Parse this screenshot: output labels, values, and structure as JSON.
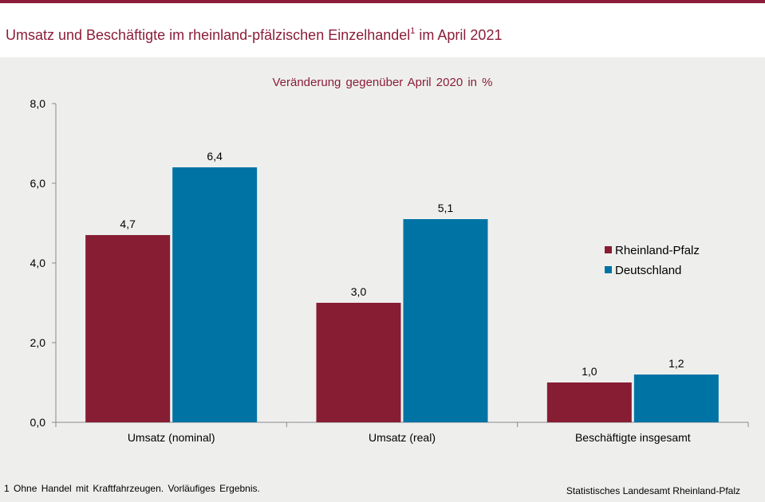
{
  "header": {
    "title_main": "Umsatz und Beschäftigte im rheinland-pfälzischen Einzelhandel",
    "title_sup": "1",
    "title_tail": " im April 2021"
  },
  "footnote": "1 Ohne Handel mit Kraftfahrzeugen. Vorläufiges Ergebnis.",
  "source": "Statistisches Landesamt Rheinland-Pfalz",
  "colors": {
    "accent": "#8b1d3a",
    "rlp": "#871d33",
    "de": "#0073a5",
    "background": "#eeefed"
  },
  "chart_data": {
    "type": "bar",
    "title": "Veränderung gegenüber April 2020 in %",
    "xlabel": "",
    "ylabel": "",
    "categories": [
      "Umsatz (nominal)",
      "Umsatz (real)",
      "Beschäftigte insgesamt"
    ],
    "series": [
      {
        "name": "Rheinland-Pfalz",
        "values": [
          4.7,
          3.0,
          1.0
        ],
        "labels": [
          "4,7",
          "3,0",
          "1,0"
        ],
        "color": "#871d33"
      },
      {
        "name": "Deutschland",
        "values": [
          6.4,
          5.1,
          1.2
        ],
        "labels": [
          "6,4",
          "5,1",
          "1,2"
        ],
        "color": "#0073a5"
      }
    ],
    "ylim": [
      0,
      8
    ],
    "yticks": [
      0,
      2,
      4,
      6,
      8
    ],
    "ytick_labels": [
      "0,0",
      "2,0",
      "4,0",
      "6,0",
      "8,0"
    ],
    "grid": false,
    "legend_position": "right"
  }
}
